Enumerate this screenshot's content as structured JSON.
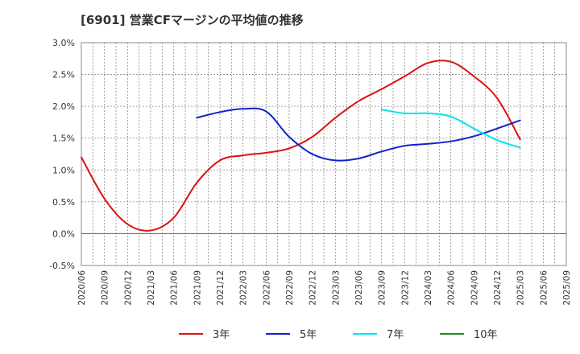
{
  "chart_data": {
    "type": "line",
    "title": "[6901]  営業CFマージンの平均値の推移",
    "xlabel": "",
    "ylabel": "",
    "ylim": [
      -0.5,
      3.0
    ],
    "y_ticks": [
      "3.0%",
      "2.5%",
      "2.0%",
      "1.5%",
      "1.0%",
      "0.5%",
      "0.0%",
      "-0.5%"
    ],
    "x_ticks": [
      "2020/06",
      "2020/09",
      "2020/12",
      "2021/03",
      "2021/06",
      "2021/09",
      "2021/12",
      "2022/03",
      "2022/06",
      "2022/09",
      "2022/12",
      "2023/03",
      "2023/06",
      "2023/09",
      "2023/12",
      "2024/03",
      "2024/06",
      "2024/09",
      "2024/12",
      "2025/03",
      "2025/06",
      "2025/09"
    ],
    "grid": true,
    "legend_position": "bottom",
    "series": [
      {
        "name": "3年",
        "color": "#dd1111",
        "values": [
          1.2,
          0.55,
          0.15,
          0.05,
          0.25,
          0.8,
          1.15,
          1.23,
          1.27,
          1.34,
          1.52,
          1.82,
          2.08,
          2.27,
          2.47,
          2.68,
          2.7,
          2.47,
          2.13,
          1.48
        ]
      },
      {
        "name": "5年",
        "color": "#1122cc",
        "values": [
          null,
          null,
          null,
          null,
          null,
          1.82,
          1.91,
          1.96,
          1.92,
          1.52,
          1.25,
          1.15,
          1.18,
          1.29,
          1.38,
          1.41,
          1.45,
          1.53,
          1.65,
          1.78
        ]
      },
      {
        "name": "7年",
        "color": "#00e5ee",
        "values": [
          null,
          null,
          null,
          null,
          null,
          null,
          null,
          null,
          null,
          null,
          null,
          null,
          null,
          1.95,
          1.89,
          1.89,
          1.84,
          1.65,
          1.47,
          1.35
        ]
      },
      {
        "name": "10年",
        "color": "#228b22",
        "values": [
          null,
          null,
          null,
          null,
          null,
          null,
          null,
          null,
          null,
          null,
          null,
          null,
          null,
          null,
          null,
          null,
          null,
          null,
          null,
          null
        ]
      }
    ]
  }
}
